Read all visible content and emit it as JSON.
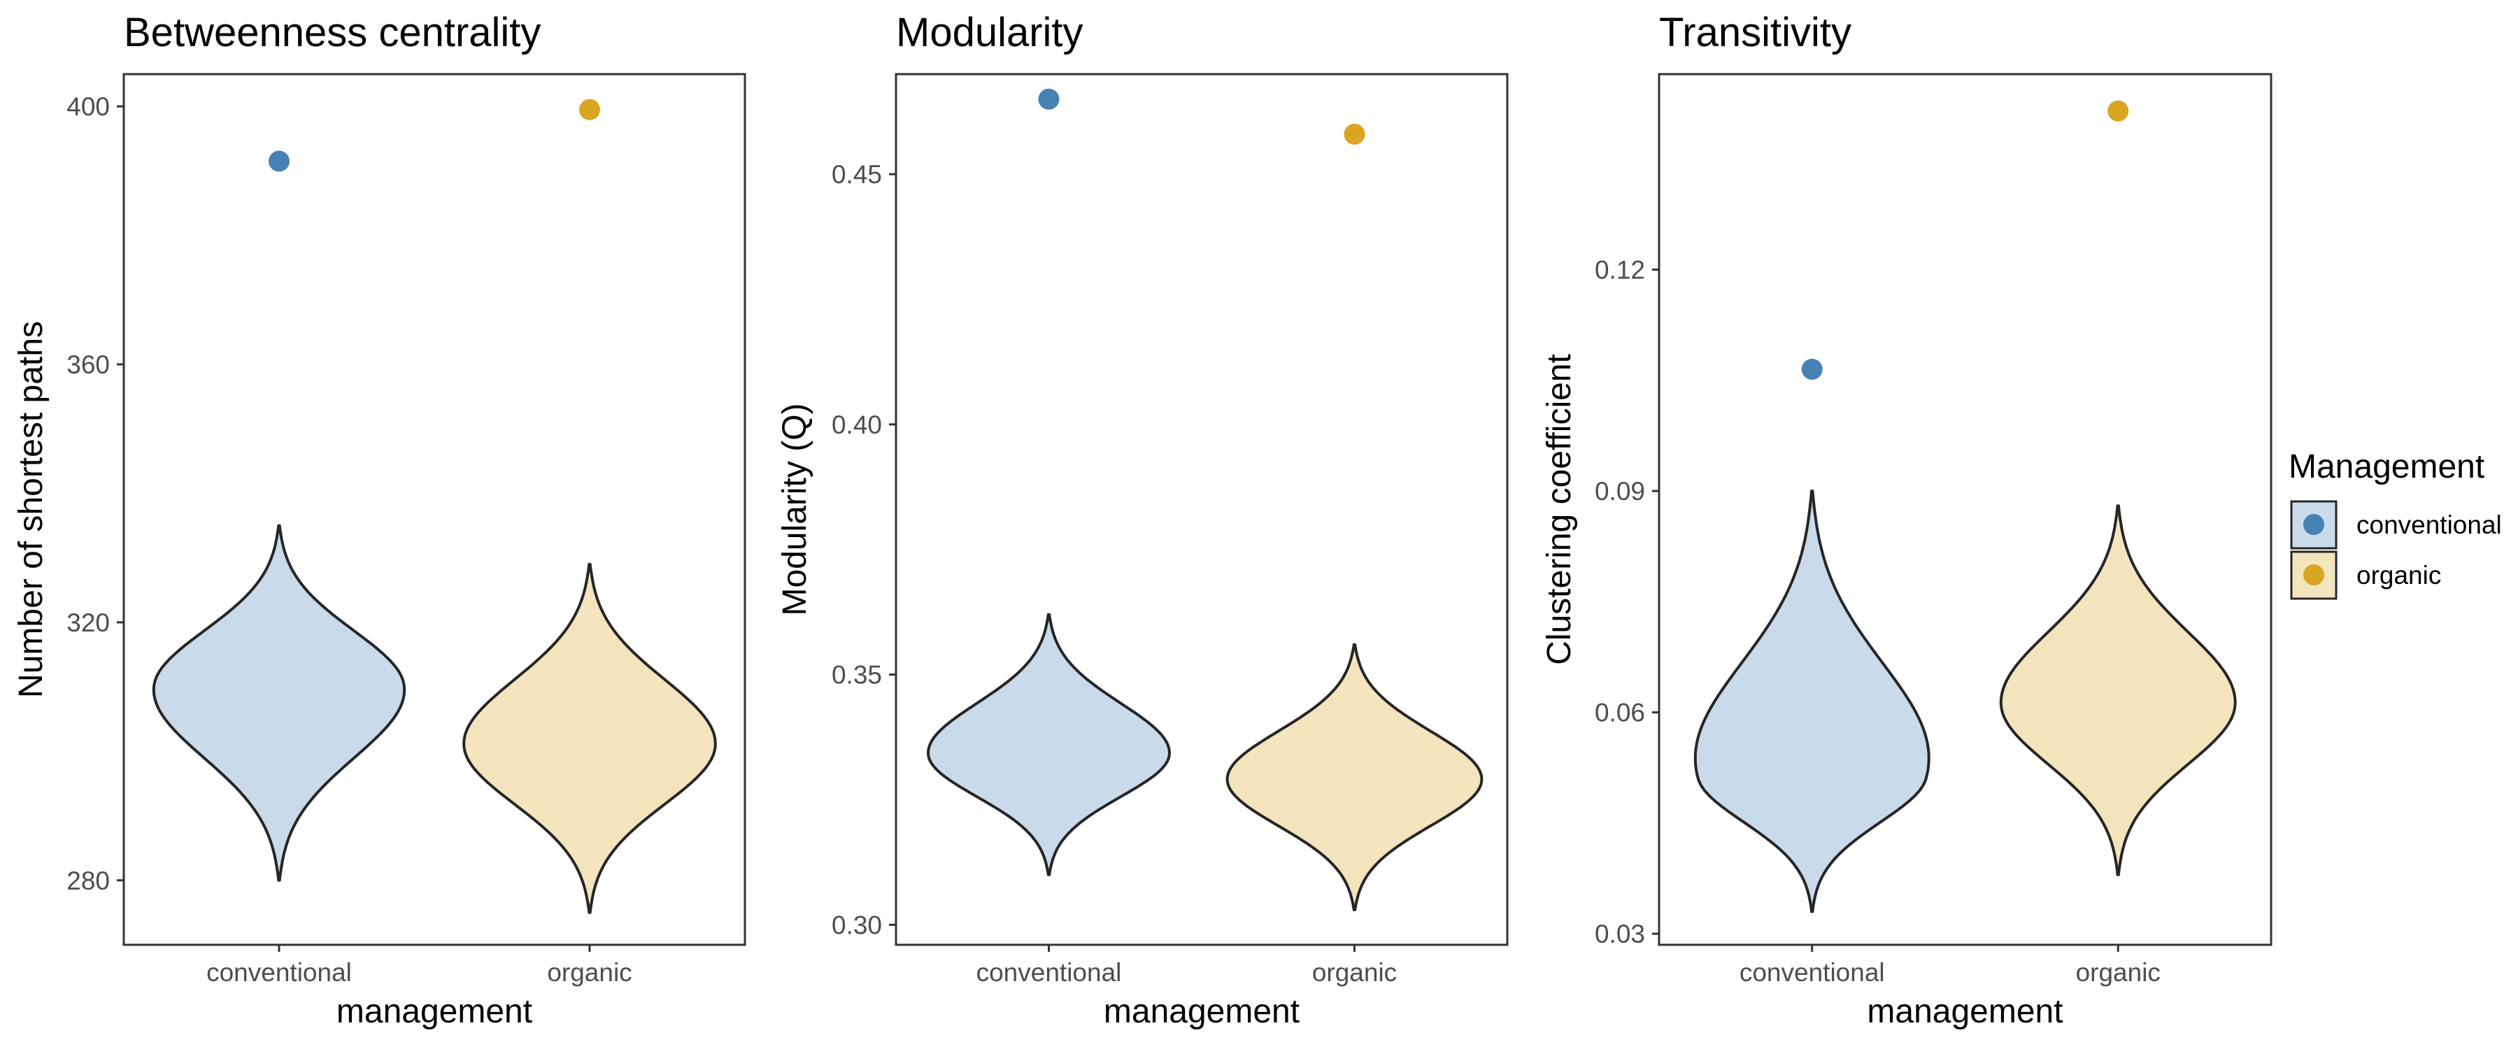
{
  "chart_data": [
    {
      "type": "violin",
      "title": "Betweenness centrality",
      "xlabel": "management",
      "ylabel": "Number of shortest paths",
      "categories": [
        "conventional",
        "organic"
      ],
      "ylim": [
        270,
        405
      ],
      "yticks": [
        280,
        320,
        360,
        400
      ],
      "tick_labels": [
        "280",
        "320",
        "360",
        "400"
      ],
      "observed": [
        {
          "group": "conventional",
          "value": 391.5
        },
        {
          "group": "organic",
          "value": 399.5
        }
      ],
      "distributions": [
        {
          "group": "conventional",
          "min": 280,
          "max": 335,
          "mode": 310
        },
        {
          "group": "organic",
          "min": 275,
          "max": 329,
          "mode": 301
        }
      ]
    },
    {
      "type": "violin",
      "title": "Modularity",
      "xlabel": "management",
      "ylabel": "Modularity (Q)",
      "categories": [
        "conventional",
        "organic"
      ],
      "ylim": [
        0.296,
        0.47
      ],
      "yticks": [
        0.3,
        0.35,
        0.4,
        0.45
      ],
      "tick_labels": [
        "0.30",
        "0.35",
        "0.40",
        "0.45"
      ],
      "observed": [
        {
          "group": "conventional",
          "value": 0.465
        },
        {
          "group": "organic",
          "value": 0.458
        }
      ],
      "distributions": [
        {
          "group": "conventional",
          "min": 0.31,
          "max": 0.362,
          "mode": 0.334
        },
        {
          "group": "organic",
          "min": 0.303,
          "max": 0.356,
          "mode": 0.329
        }
      ]
    },
    {
      "type": "violin",
      "title": "Transitivity",
      "xlabel": "management",
      "ylabel": "Clustering coefficient",
      "categories": [
        "conventional",
        "organic"
      ],
      "ylim": [
        0.0285,
        0.1465
      ],
      "yticks": [
        0.03,
        0.06,
        0.09,
        0.12
      ],
      "tick_labels": [
        "0.03",
        "0.06",
        "0.09",
        "0.12"
      ],
      "observed": [
        {
          "group": "conventional",
          "value": 0.1065
        },
        {
          "group": "organic",
          "value": 0.1415
        }
      ],
      "distributions": [
        {
          "group": "conventional",
          "min": 0.033,
          "max": 0.09,
          "mode": 0.051
        },
        {
          "group": "organic",
          "min": 0.038,
          "max": 0.088,
          "mode": 0.061
        }
      ]
    }
  ],
  "legend": {
    "title": "Management",
    "items": [
      {
        "label": "conventional",
        "point_color": "#4682B4",
        "fill_color": "#C9DAEA"
      },
      {
        "label": "organic",
        "point_color": "#DAA520",
        "fill_color": "#F4E4BE"
      }
    ],
    "placement": "right"
  },
  "colors": {
    "conventional_point": "#4682B4",
    "organic_point": "#DAA520",
    "conventional_fill": "#C9DAEA",
    "organic_fill": "#F4E4BE",
    "outline": "#262626"
  }
}
